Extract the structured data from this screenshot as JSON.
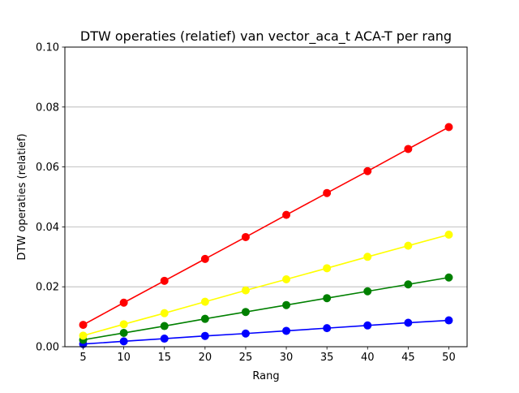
{
  "chart_data": {
    "type": "line",
    "title": "DTW operaties (relatief) van vector_aca_t ACA-T per rang",
    "xlabel": "Rang",
    "ylabel": "DTW operaties (relatief)",
    "x": [
      5,
      10,
      15,
      20,
      25,
      30,
      35,
      40,
      45,
      50
    ],
    "x_ticks": [
      "5",
      "10",
      "15",
      "20",
      "25",
      "30",
      "35",
      "40",
      "45",
      "50"
    ],
    "xlim": [
      2.75,
      52.25
    ],
    "ylim": [
      0,
      0.1
    ],
    "y_ticks": [
      "0.00",
      "0.02",
      "0.04",
      "0.06",
      "0.08",
      "0.10"
    ],
    "y_tick_values": [
      0,
      0.02,
      0.04,
      0.06,
      0.08,
      0.1
    ],
    "grid": "horizontal",
    "legend": "none",
    "series": [
      {
        "color": "#0000ff",
        "marker": "circle",
        "values": [
          0.0009,
          0.0018,
          0.0027,
          0.0036,
          0.0044,
          0.0053,
          0.0062,
          0.0071,
          0.008,
          0.0088
        ]
      },
      {
        "color": "#008000",
        "marker": "circle",
        "values": [
          0.0023,
          0.0046,
          0.0069,
          0.0093,
          0.0116,
          0.0139,
          0.0162,
          0.0185,
          0.0208,
          0.0231
        ]
      },
      {
        "color": "#ffff00",
        "marker": "circle",
        "values": [
          0.0037,
          0.0075,
          0.0112,
          0.015,
          0.0188,
          0.0225,
          0.0262,
          0.03,
          0.0337,
          0.0374
        ]
      },
      {
        "color": "#ff0000",
        "marker": "circle",
        "values": [
          0.0073,
          0.0147,
          0.022,
          0.0293,
          0.0366,
          0.044,
          0.0513,
          0.0586,
          0.066,
          0.0733
        ]
      }
    ]
  }
}
